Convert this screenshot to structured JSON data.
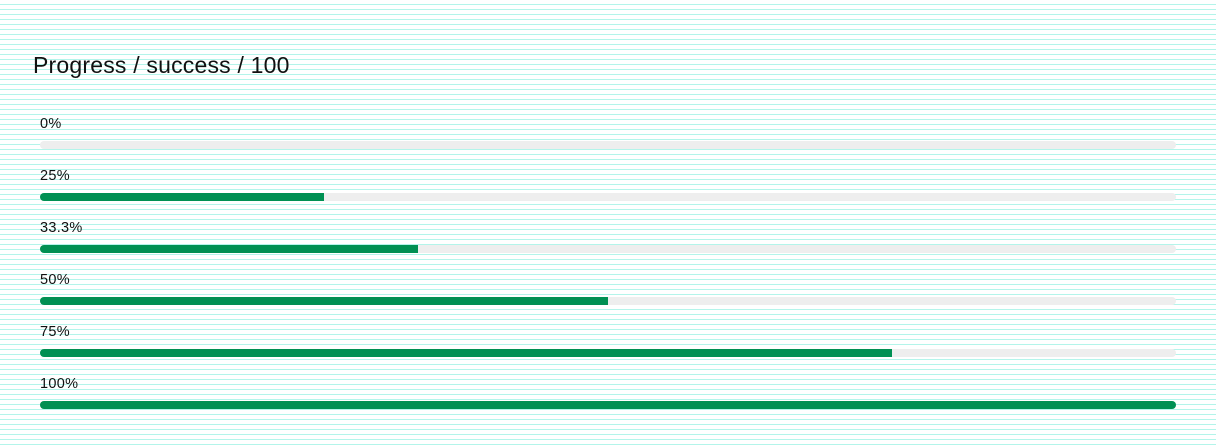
{
  "title": "Progress / success / 100",
  "colors": {
    "fill": "#009053",
    "track": "#eeeeee",
    "background_lines": "#b3f5ea"
  },
  "progress_bars": [
    {
      "label": "0%",
      "value": 0
    },
    {
      "label": "25%",
      "value": 25
    },
    {
      "label": "33.3%",
      "value": 33.3
    },
    {
      "label": "50%",
      "value": 50
    },
    {
      "label": "75%",
      "value": 75
    },
    {
      "label": "100%",
      "value": 100
    }
  ]
}
